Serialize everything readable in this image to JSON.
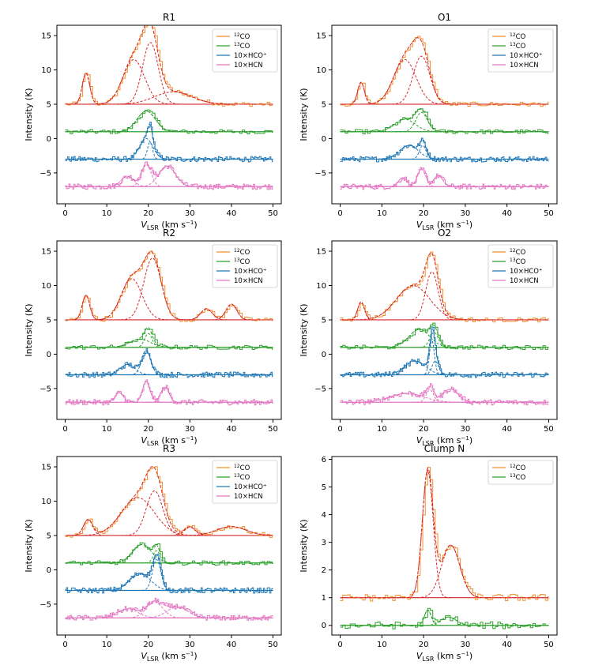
{
  "figure": {
    "ylabel": "Intensity (K)",
    "xlabel_main": "V",
    "xlabel_sub": "LSR",
    "xlabel_units": " (km s",
    "xlabel_exp": "−1",
    "xlabel_close": ")"
  },
  "colors": {
    "co12": "#f28e2b",
    "co13": "#2ca02c",
    "hco": "#1f77b4",
    "hcn": "#e377c2",
    "fit": "#d62728",
    "axis": "#000000"
  },
  "chart_data": [
    {
      "type": "line",
      "title": "R1",
      "xlim": [
        -2,
        52
      ],
      "ylim": [
        -9.5,
        16.5
      ],
      "xticks": [
        0,
        10,
        20,
        30,
        40,
        50
      ],
      "yticks": [
        -5,
        0,
        5,
        10,
        15
      ],
      "legend": "top-right",
      "series": [
        {
          "name": "12CO",
          "prefix": "12",
          "label": "CO",
          "line": "co12",
          "fit": "fit",
          "baseline": 5,
          "components": [
            {
              "amp": 4.5,
              "center": 5,
              "sigma": 0.9
            },
            {
              "amp": 6.5,
              "center": 16.5,
              "sigma": 2.6
            },
            {
              "amp": 9.0,
              "center": 20.5,
              "sigma": 1.9
            },
            {
              "amp": 1.8,
              "center": 26,
              "sigma": 4.5
            }
          ]
        },
        {
          "name": "13CO",
          "prefix": "13",
          "label": "CO",
          "line": "co13",
          "fit": "co13",
          "baseline": 1,
          "components": [
            {
              "amp": 3.0,
              "center": 19.5,
              "sigma": 2.2
            }
          ]
        },
        {
          "name": "10xHCO+",
          "prefix": "",
          "label": "10×HCO⁺",
          "line": "hco",
          "fit": "hco",
          "baseline": -3,
          "components": [
            {
              "amp": 3.0,
              "center": 19.5,
              "sigma": 1.6
            },
            {
              "amp": 2.5,
              "center": 20.4,
              "sigma": 0.6
            }
          ]
        },
        {
          "name": "10xHCN",
          "prefix": "",
          "label": "10×HCN",
          "line": "hcn",
          "fit": "hcn",
          "baseline": -7,
          "components": [
            {
              "amp": 1.5,
              "center": 15,
              "sigma": 1.5
            },
            {
              "amp": 3.2,
              "center": 19.5,
              "sigma": 1.2
            },
            {
              "amp": 3.0,
              "center": 24.5,
              "sigma": 2.0
            }
          ]
        }
      ]
    },
    {
      "type": "line",
      "title": "O1",
      "xlim": [
        -2,
        52
      ],
      "ylim": [
        -9.5,
        16.5
      ],
      "xticks": [
        0,
        10,
        20,
        30,
        40,
        50
      ],
      "yticks": [
        -5,
        0,
        5,
        10,
        15
      ],
      "legend": "top-right",
      "series": [
        {
          "name": "12CO",
          "prefix": "12",
          "label": "CO",
          "line": "co12",
          "fit": "fit",
          "baseline": 5,
          "components": [
            {
              "amp": 3.2,
              "center": 5,
              "sigma": 0.8
            },
            {
              "amp": 6.5,
              "center": 15.5,
              "sigma": 2.7
            },
            {
              "amp": 7.0,
              "center": 19.5,
              "sigma": 2.0
            }
          ]
        },
        {
          "name": "13CO",
          "prefix": "13",
          "label": "CO",
          "line": "co13",
          "fit": "co13",
          "baseline": 1,
          "components": [
            {
              "amp": 1.8,
              "center": 15.5,
              "sigma": 2.5
            },
            {
              "amp": 2.8,
              "center": 19.5,
              "sigma": 1.4
            }
          ]
        },
        {
          "name": "10xHCO+",
          "prefix": "",
          "label": "10×HCO⁺",
          "line": "hco",
          "fit": "hco",
          "baseline": -3,
          "components": [
            {
              "amp": 2.0,
              "center": 16.5,
              "sigma": 2.3
            },
            {
              "amp": 2.0,
              "center": 19.8,
              "sigma": 0.8
            }
          ]
        },
        {
          "name": "10xHCN",
          "prefix": "",
          "label": "10×HCN",
          "line": "hcn",
          "fit": "hcn",
          "baseline": -7,
          "components": [
            {
              "amp": 1.3,
              "center": 15,
              "sigma": 1.0
            },
            {
              "amp": 2.5,
              "center": 19.5,
              "sigma": 1.0
            },
            {
              "amp": 1.6,
              "center": 23.5,
              "sigma": 1.1
            }
          ]
        }
      ]
    },
    {
      "type": "line",
      "title": "R2",
      "xlim": [
        -2,
        52
      ],
      "ylim": [
        -9.5,
        16.5
      ],
      "xticks": [
        0,
        10,
        20,
        30,
        40,
        50
      ],
      "yticks": [
        -5,
        0,
        5,
        10,
        15
      ],
      "legend": "top-right",
      "series": [
        {
          "name": "12CO",
          "prefix": "12",
          "label": "CO",
          "line": "co12",
          "fit": "fit",
          "baseline": 5,
          "components": [
            {
              "amp": 3.6,
              "center": 5,
              "sigma": 0.9
            },
            {
              "amp": 6.0,
              "center": 16,
              "sigma": 2.5
            },
            {
              "amp": 9.0,
              "center": 21,
              "sigma": 2.1
            },
            {
              "amp": 1.6,
              "center": 34,
              "sigma": 1.4
            },
            {
              "amp": 2.3,
              "center": 40,
              "sigma": 1.3
            }
          ]
        },
        {
          "name": "13CO",
          "prefix": "13",
          "label": "CO",
          "line": "co13",
          "fit": "co13",
          "baseline": 1,
          "components": [
            {
              "amp": 1.2,
              "center": 18,
              "sigma": 2.5
            },
            {
              "amp": 2.0,
              "center": 20,
              "sigma": 0.9
            }
          ]
        },
        {
          "name": "10xHCO+",
          "prefix": "",
          "label": "10×HCO⁺",
          "line": "hco",
          "fit": "hco",
          "baseline": -3,
          "components": [
            {
              "amp": 1.5,
              "center": 15,
              "sigma": 1.8
            },
            {
              "amp": 3.5,
              "center": 19.5,
              "sigma": 1.1
            }
          ]
        },
        {
          "name": "10xHCN",
          "prefix": "",
          "label": "10×HCN",
          "line": "hcn",
          "fit": "hcn",
          "baseline": -7,
          "components": [
            {
              "amp": 1.4,
              "center": 13,
              "sigma": 1.0
            },
            {
              "amp": 3.0,
              "center": 19.5,
              "sigma": 0.9
            },
            {
              "amp": 2.2,
              "center": 24,
              "sigma": 1.0
            }
          ]
        }
      ]
    },
    {
      "type": "line",
      "title": "O2",
      "xlim": [
        -2,
        52
      ],
      "ylim": [
        -9.5,
        16.5
      ],
      "xticks": [
        0,
        10,
        20,
        30,
        40,
        50
      ],
      "yticks": [
        -5,
        0,
        5,
        10,
        15
      ],
      "legend": "top-right",
      "series": [
        {
          "name": "12CO",
          "prefix": "12",
          "label": "CO",
          "line": "co12",
          "fit": "fit",
          "baseline": 5,
          "components": [
            {
              "amp": 2.6,
              "center": 5,
              "sigma": 0.8
            },
            {
              "amp": 5.0,
              "center": 17.5,
              "sigma": 4.0
            },
            {
              "amp": 7.0,
              "center": 22,
              "sigma": 1.5
            }
          ]
        },
        {
          "name": "13CO",
          "prefix": "13",
          "label": "CO",
          "line": "co13",
          "fit": "co13",
          "baseline": 1,
          "components": [
            {
              "amp": 2.6,
              "center": 19,
              "sigma": 2.5
            },
            {
              "amp": 2.2,
              "center": 22.5,
              "sigma": 1.0
            }
          ]
        },
        {
          "name": "10xHCO+",
          "prefix": "",
          "label": "10×HCO⁺",
          "line": "hco",
          "fit": "hco",
          "baseline": -3,
          "components": [
            {
              "amp": 2.0,
              "center": 18,
              "sigma": 2.5
            },
            {
              "amp": 5.0,
              "center": 22,
              "sigma": 0.6
            },
            {
              "amp": 2.0,
              "center": 22.8,
              "sigma": 0.8
            }
          ]
        },
        {
          "name": "10xHCN",
          "prefix": "",
          "label": "10×HCN",
          "line": "hcn",
          "fit": "hcn",
          "baseline": -7,
          "components": [
            {
              "amp": 1.3,
              "center": 16,
              "sigma": 4.0
            },
            {
              "amp": 1.8,
              "center": 21.5,
              "sigma": 0.9
            },
            {
              "amp": 1.9,
              "center": 26.5,
              "sigma": 1.8
            }
          ]
        }
      ]
    },
    {
      "type": "line",
      "title": "R3",
      "xlim": [
        -2,
        52
      ],
      "ylim": [
        -9.5,
        16.5
      ],
      "xticks": [
        0,
        10,
        20,
        30,
        40,
        50
      ],
      "yticks": [
        -5,
        0,
        5,
        10,
        15
      ],
      "legend": "top-right",
      "series": [
        {
          "name": "12CO",
          "prefix": "12",
          "label": "CO",
          "line": "co12",
          "fit": "fit",
          "baseline": 5,
          "components": [
            {
              "amp": 2.3,
              "center": 5.5,
              "sigma": 1.1
            },
            {
              "amp": 5.5,
              "center": 17.5,
              "sigma": 4.0
            },
            {
              "amp": 6.5,
              "center": 21.5,
              "sigma": 2.0
            },
            {
              "amp": 1.2,
              "center": 30,
              "sigma": 1.3
            },
            {
              "amp": 1.3,
              "center": 40,
              "sigma": 3.5
            }
          ]
        },
        {
          "name": "13CO",
          "prefix": "13",
          "label": "CO",
          "line": "co13",
          "fit": "co13",
          "baseline": 1,
          "components": [
            {
              "amp": 2.7,
              "center": 18.5,
              "sigma": 2.3
            },
            {
              "amp": 1.8,
              "center": 22,
              "sigma": 0.8
            }
          ]
        },
        {
          "name": "10xHCO+",
          "prefix": "",
          "label": "10×HCO⁺",
          "line": "hco",
          "fit": "hco",
          "baseline": -3,
          "components": [
            {
              "amp": 2.5,
              "center": 18,
              "sigma": 2.5
            },
            {
              "amp": 4.5,
              "center": 22,
              "sigma": 1.0
            }
          ]
        },
        {
          "name": "10xHCN",
          "prefix": "",
          "label": "10×HCN",
          "line": "hcn",
          "fit": "hcn",
          "baseline": -7,
          "components": [
            {
              "amp": 1.3,
              "center": 15,
              "sigma": 2.5
            },
            {
              "amp": 2.3,
              "center": 21.5,
              "sigma": 2.0
            },
            {
              "amp": 1.6,
              "center": 27,
              "sigma": 2.5
            }
          ]
        }
      ]
    },
    {
      "type": "line",
      "title": "Clump N",
      "xlim": [
        -2,
        52
      ],
      "ylim": [
        -0.35,
        6.1
      ],
      "xticks": [
        0,
        10,
        20,
        30,
        40,
        50
      ],
      "yticks": [
        0,
        1,
        2,
        3,
        4,
        5,
        6
      ],
      "legend": "top-right",
      "series": [
        {
          "name": "12CO",
          "prefix": "12",
          "label": "CO",
          "line": "co12",
          "fit": "fit",
          "baseline": 1,
          "components": [
            {
              "amp": 4.6,
              "center": 21,
              "sigma": 1.3
            },
            {
              "amp": 1.9,
              "center": 26.5,
              "sigma": 2.2
            }
          ]
        },
        {
          "name": "13CO",
          "prefix": "13",
          "label": "CO",
          "line": "co13",
          "fit": "co13",
          "baseline": 0,
          "components": [
            {
              "amp": 0.55,
              "center": 21,
              "sigma": 0.8
            },
            {
              "amp": 0.3,
              "center": 26,
              "sigma": 1.8
            }
          ]
        }
      ]
    }
  ]
}
